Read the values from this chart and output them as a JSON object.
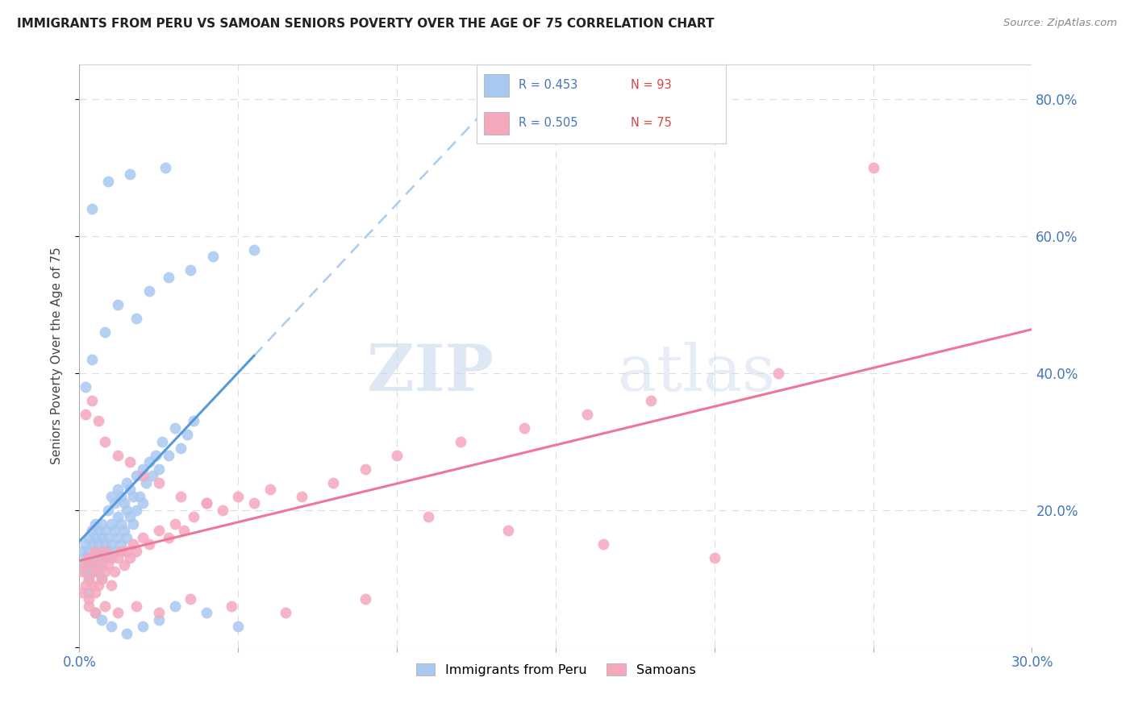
{
  "title": "IMMIGRANTS FROM PERU VS SAMOAN SENIORS POVERTY OVER THE AGE OF 75 CORRELATION CHART",
  "source": "Source: ZipAtlas.com",
  "ylabel": "Seniors Poverty Over the Age of 75",
  "xlim": [
    0.0,
    0.3
  ],
  "ylim": [
    0.0,
    0.85
  ],
  "ytick_vals": [
    0.0,
    0.2,
    0.4,
    0.6,
    0.8
  ],
  "ytick_labels": [
    "",
    "20.0%",
    "40.0%",
    "60.0%",
    "80.0%"
  ],
  "xtick_vals": [
    0.0,
    0.05,
    0.1,
    0.15,
    0.2,
    0.25,
    0.3
  ],
  "blue_color": "#A8C8F0",
  "pink_color": "#F5A8BC",
  "line_blue": "#5599DD",
  "line_pink": "#EE7799",
  "dashed_blue": "#AACCEE",
  "background_color": "#ffffff",
  "grid_color": "#dddddd",
  "peru_x": [
    0.001,
    0.001,
    0.002,
    0.002,
    0.002,
    0.003,
    0.003,
    0.003,
    0.003,
    0.004,
    0.004,
    0.004,
    0.004,
    0.005,
    0.005,
    0.005,
    0.005,
    0.006,
    0.006,
    0.006,
    0.006,
    0.007,
    0.007,
    0.007,
    0.007,
    0.007,
    0.008,
    0.008,
    0.008,
    0.009,
    0.009,
    0.009,
    0.01,
    0.01,
    0.01,
    0.01,
    0.011,
    0.011,
    0.011,
    0.012,
    0.012,
    0.012,
    0.013,
    0.013,
    0.013,
    0.014,
    0.014,
    0.015,
    0.015,
    0.015,
    0.016,
    0.016,
    0.017,
    0.017,
    0.018,
    0.018,
    0.019,
    0.02,
    0.02,
    0.021,
    0.022,
    0.023,
    0.024,
    0.025,
    0.026,
    0.028,
    0.03,
    0.032,
    0.034,
    0.036,
    0.003,
    0.005,
    0.007,
    0.01,
    0.015,
    0.02,
    0.025,
    0.03,
    0.04,
    0.05,
    0.002,
    0.004,
    0.008,
    0.012,
    0.018,
    0.022,
    0.028,
    0.035,
    0.042,
    0.055,
    0.004,
    0.009,
    0.016,
    0.027
  ],
  "peru_y": [
    0.12,
    0.14,
    0.11,
    0.13,
    0.15,
    0.1,
    0.12,
    0.14,
    0.16,
    0.11,
    0.13,
    0.15,
    0.17,
    0.12,
    0.14,
    0.16,
    0.18,
    0.11,
    0.13,
    0.15,
    0.17,
    0.1,
    0.12,
    0.14,
    0.16,
    0.18,
    0.13,
    0.15,
    0.17,
    0.14,
    0.16,
    0.2,
    0.13,
    0.15,
    0.18,
    0.22,
    0.14,
    0.17,
    0.21,
    0.16,
    0.19,
    0.23,
    0.15,
    0.18,
    0.22,
    0.17,
    0.21,
    0.16,
    0.2,
    0.24,
    0.19,
    0.23,
    0.18,
    0.22,
    0.2,
    0.25,
    0.22,
    0.21,
    0.26,
    0.24,
    0.27,
    0.25,
    0.28,
    0.26,
    0.3,
    0.28,
    0.32,
    0.29,
    0.31,
    0.33,
    0.08,
    0.05,
    0.04,
    0.03,
    0.02,
    0.03,
    0.04,
    0.06,
    0.05,
    0.03,
    0.38,
    0.42,
    0.46,
    0.5,
    0.48,
    0.52,
    0.54,
    0.55,
    0.57,
    0.58,
    0.64,
    0.68,
    0.69,
    0.7
  ],
  "samoan_x": [
    0.001,
    0.001,
    0.002,
    0.002,
    0.003,
    0.003,
    0.003,
    0.004,
    0.004,
    0.005,
    0.005,
    0.005,
    0.006,
    0.006,
    0.007,
    0.007,
    0.008,
    0.008,
    0.009,
    0.01,
    0.01,
    0.011,
    0.012,
    0.013,
    0.014,
    0.015,
    0.016,
    0.017,
    0.018,
    0.02,
    0.022,
    0.025,
    0.028,
    0.03,
    0.033,
    0.036,
    0.04,
    0.045,
    0.05,
    0.055,
    0.06,
    0.07,
    0.08,
    0.09,
    0.1,
    0.12,
    0.14,
    0.16,
    0.18,
    0.22,
    0.002,
    0.004,
    0.006,
    0.008,
    0.012,
    0.016,
    0.02,
    0.025,
    0.032,
    0.04,
    0.003,
    0.005,
    0.008,
    0.012,
    0.018,
    0.025,
    0.035,
    0.048,
    0.065,
    0.09,
    0.11,
    0.135,
    0.165,
    0.2,
    0.25
  ],
  "samoan_y": [
    0.08,
    0.11,
    0.09,
    0.12,
    0.07,
    0.1,
    0.13,
    0.09,
    0.12,
    0.08,
    0.11,
    0.14,
    0.09,
    0.12,
    0.1,
    0.13,
    0.11,
    0.14,
    0.12,
    0.09,
    0.13,
    0.11,
    0.13,
    0.14,
    0.12,
    0.14,
    0.13,
    0.15,
    0.14,
    0.16,
    0.15,
    0.17,
    0.16,
    0.18,
    0.17,
    0.19,
    0.21,
    0.2,
    0.22,
    0.21,
    0.23,
    0.22,
    0.24,
    0.26,
    0.28,
    0.3,
    0.32,
    0.34,
    0.36,
    0.4,
    0.34,
    0.36,
    0.33,
    0.3,
    0.28,
    0.27,
    0.25,
    0.24,
    0.22,
    0.21,
    0.06,
    0.05,
    0.06,
    0.05,
    0.06,
    0.05,
    0.07,
    0.06,
    0.05,
    0.07,
    0.19,
    0.17,
    0.15,
    0.13,
    0.7
  ]
}
